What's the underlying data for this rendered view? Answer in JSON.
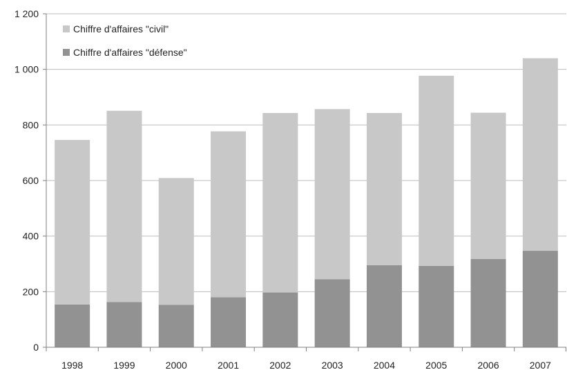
{
  "chart_data": {
    "type": "bar",
    "stacked": true,
    "categories": [
      "1998",
      "1999",
      "2000",
      "2001",
      "2002",
      "2003",
      "2004",
      "2005",
      "2006",
      "2007"
    ],
    "series": [
      {
        "name": "Chiffre d'affaires \"défense\"",
        "color": "#929292",
        "values": [
          154,
          163,
          153,
          180,
          197,
          245,
          295,
          293,
          318,
          347
        ]
      },
      {
        "name": "Chiffre d'affaires \"civil\"",
        "color": "#c8c8c8",
        "values": [
          592,
          688,
          456,
          597,
          646,
          612,
          548,
          684,
          526,
          693
        ]
      }
    ],
    "title": "",
    "xlabel": "",
    "ylabel": "",
    "ylim": [
      0,
      1200
    ],
    "yticks": [
      0,
      200,
      400,
      600,
      800,
      1000,
      1200
    ],
    "ytick_labels": [
      "0",
      "200",
      "400",
      "600",
      "800",
      "1 000",
      "1 200"
    ],
    "grid": true,
    "legend_order": [
      1,
      0
    ],
    "legend_position": "top-left"
  }
}
